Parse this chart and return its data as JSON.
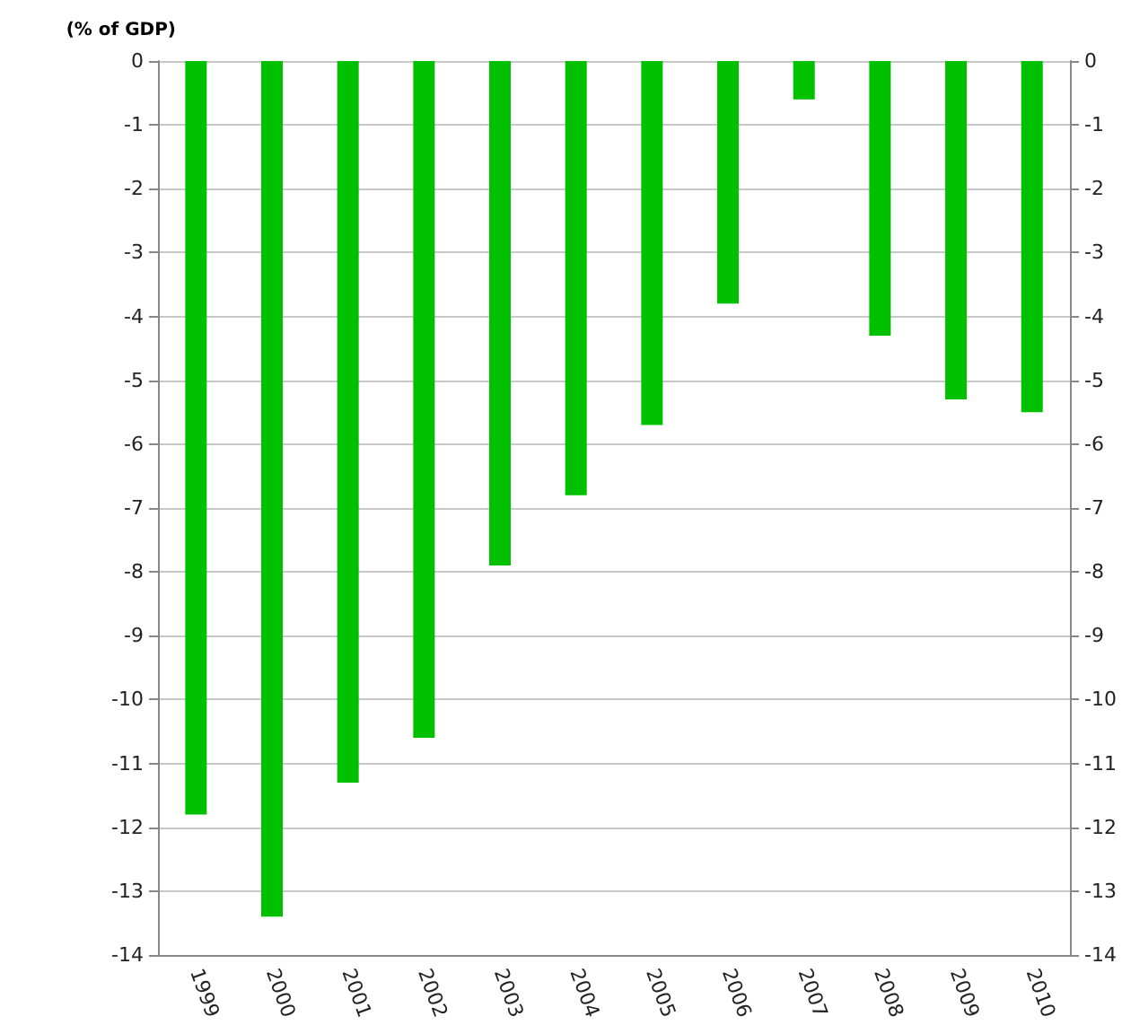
{
  "chart_data": {
    "type": "bar",
    "ylabel": "(% of GDP)",
    "categories": [
      "1999",
      "2000",
      "2001",
      "2002",
      "2003",
      "2004",
      "2005",
      "2006",
      "2007",
      "2008",
      "2009",
      "2010"
    ],
    "values": [
      -11.8,
      -13.4,
      -11.3,
      -10.6,
      -7.9,
      -6.8,
      -5.7,
      -3.8,
      -0.6,
      -4.3,
      -5.3,
      -5.5
    ],
    "color": "#00c000",
    "ylim": [
      -14,
      0
    ],
    "yticks": [
      -14,
      -13,
      -12,
      -11,
      -10,
      -9,
      -8,
      -7,
      -6,
      -5,
      -4,
      -3,
      -2,
      -1,
      0
    ],
    "y2lim": [
      -14,
      0
    ],
    "y2ticks": [
      -14,
      -13,
      -12,
      -11,
      -10,
      -9,
      -8,
      -7,
      -6,
      -5,
      -4,
      -3,
      -2,
      -1,
      0
    ],
    "grid": "y"
  }
}
